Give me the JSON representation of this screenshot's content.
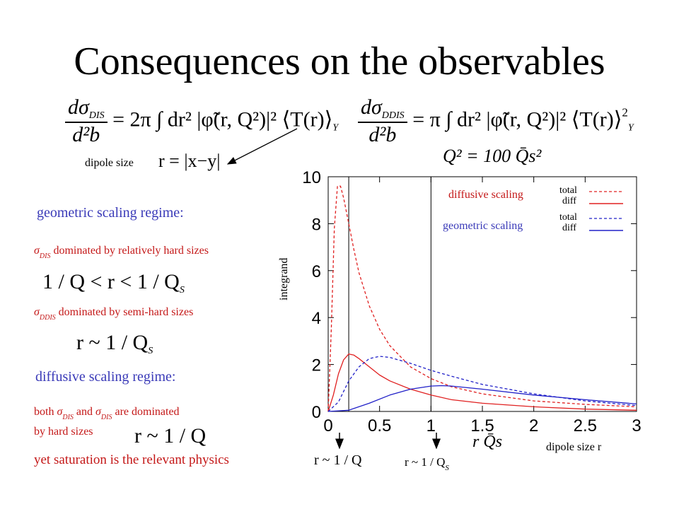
{
  "title": "Consequences on the observables",
  "formulas": {
    "dis_lhs_num": "dσ",
    "dis_lhs_sub": "DIS",
    "dis_lhs_den": "d²b",
    "dis_rhs": "= 2π ∫ dr² |φ̃(r, Q²)|² ⟨T(r)⟩",
    "dis_rhs_sub": "Y",
    "ddis_lhs_num": "dσ",
    "ddis_lhs_sub": "DDIS",
    "ddis_lhs_den": "d²b",
    "ddis_rhs": "= π ∫ dr² |φ̃(r, Q²)|² ⟨T(r)⟩",
    "ddis_rhs_sub": "Y",
    "ddis_rhs_sup": "2"
  },
  "dipole_size_label": "dipole size",
  "dipole_size_formula": "r = |x−y|",
  "left_panel": {
    "geometric_regime": "geometric scaling regime:",
    "dis_line_sigma": "σ",
    "dis_line_sub": "DIS",
    "dis_line_text": "dominated by relatively hard sizes",
    "ineq": "1 / Q < r < 1 / Q",
    "ineq_sub": "S",
    "ddis_line_sigma": "σ",
    "ddis_line_sub": "DDIS",
    "ddis_line_text": "dominated by semi-hard sizes",
    "approx1": "r ~ 1 / Q",
    "approx1_sub": "S",
    "diffusive_regime": "diffusive scaling regime:",
    "both_prefix": "both",
    "both_sigma1": "σ",
    "both_sub1": "DIS",
    "both_and": "and",
    "both_sigma2": "σ",
    "both_sub2": "DIS",
    "both_suffix": "are dominated",
    "by_hard": "by hard sizes",
    "approx2": "r ~ 1 / Q",
    "saturation": "yet saturation is the relevant physics"
  },
  "plot_header": "Q² = 100 Q̄s²",
  "legend": {
    "diffusive": "diffusive scaling",
    "geometric": "geometric scaling",
    "total1": "total",
    "diff1": "diff",
    "total2": "total",
    "diff2": "diff"
  },
  "below_plot": {
    "r_over_q": "r ~ 1 / Q",
    "r_over_qs": "r ~ 1 / Q",
    "r_over_qs_sub": "S"
  },
  "colors": {
    "diffusive": "#e02020",
    "geometric": "#2020c8",
    "blue_text": "#3a3ab8",
    "red_text": "#c41818"
  },
  "chart_data": {
    "type": "line",
    "title": "",
    "xlabel": "r Q̄s",
    "xlabel_extra": "dipole size r",
    "ylabel": "integrand",
    "xlim": [
      0,
      3
    ],
    "ylim": [
      0,
      10
    ],
    "xticks": [
      "0",
      "0.5",
      "1",
      "1.5",
      "2",
      "2.5",
      "3"
    ],
    "yticks": [
      "0",
      "2",
      "4",
      "6",
      "8",
      "10"
    ],
    "vlines": [
      0.2,
      1.0
    ],
    "series": [
      {
        "name": "diffusive scaling total",
        "color": "#e02020",
        "dash": true,
        "x": [
          0,
          0.03,
          0.06,
          0.09,
          0.12,
          0.15,
          0.2,
          0.25,
          0.3,
          0.4,
          0.5,
          0.6,
          0.8,
          1.0,
          1.2,
          1.5,
          2.0,
          2.5,
          3.0
        ],
        "y": [
          0,
          3.5,
          7.8,
          9.6,
          9.6,
          9.1,
          8.0,
          6.9,
          5.9,
          4.5,
          3.5,
          2.8,
          1.9,
          1.4,
          1.05,
          0.75,
          0.45,
          0.3,
          0.2
        ]
      },
      {
        "name": "diffusive scaling diff",
        "color": "#e02020",
        "dash": false,
        "x": [
          0,
          0.05,
          0.1,
          0.15,
          0.2,
          0.25,
          0.3,
          0.4,
          0.5,
          0.6,
          0.8,
          1.0,
          1.2,
          1.5,
          2.0,
          2.5,
          3.0
        ],
        "y": [
          0,
          0.7,
          1.6,
          2.2,
          2.45,
          2.4,
          2.25,
          1.9,
          1.55,
          1.3,
          0.95,
          0.7,
          0.5,
          0.35,
          0.2,
          0.1,
          0.05
        ]
      },
      {
        "name": "geometric scaling total",
        "color": "#2020c8",
        "dash": true,
        "x": [
          0,
          0.1,
          0.2,
          0.3,
          0.4,
          0.5,
          0.6,
          0.8,
          1.0,
          1.2,
          1.5,
          2.0,
          2.5,
          3.0
        ],
        "y": [
          0,
          0.4,
          1.3,
          1.9,
          2.25,
          2.35,
          2.3,
          2.05,
          1.75,
          1.5,
          1.15,
          0.75,
          0.45,
          0.25
        ]
      },
      {
        "name": "geometric scaling diff",
        "color": "#2020c8",
        "dash": false,
        "x": [
          0,
          0.2,
          0.4,
          0.6,
          0.8,
          1.0,
          1.1,
          1.2,
          1.5,
          2.0,
          2.5,
          3.0
        ],
        "y": [
          0,
          0.05,
          0.35,
          0.7,
          0.95,
          1.08,
          1.1,
          1.08,
          0.95,
          0.7,
          0.5,
          0.32
        ]
      }
    ]
  }
}
